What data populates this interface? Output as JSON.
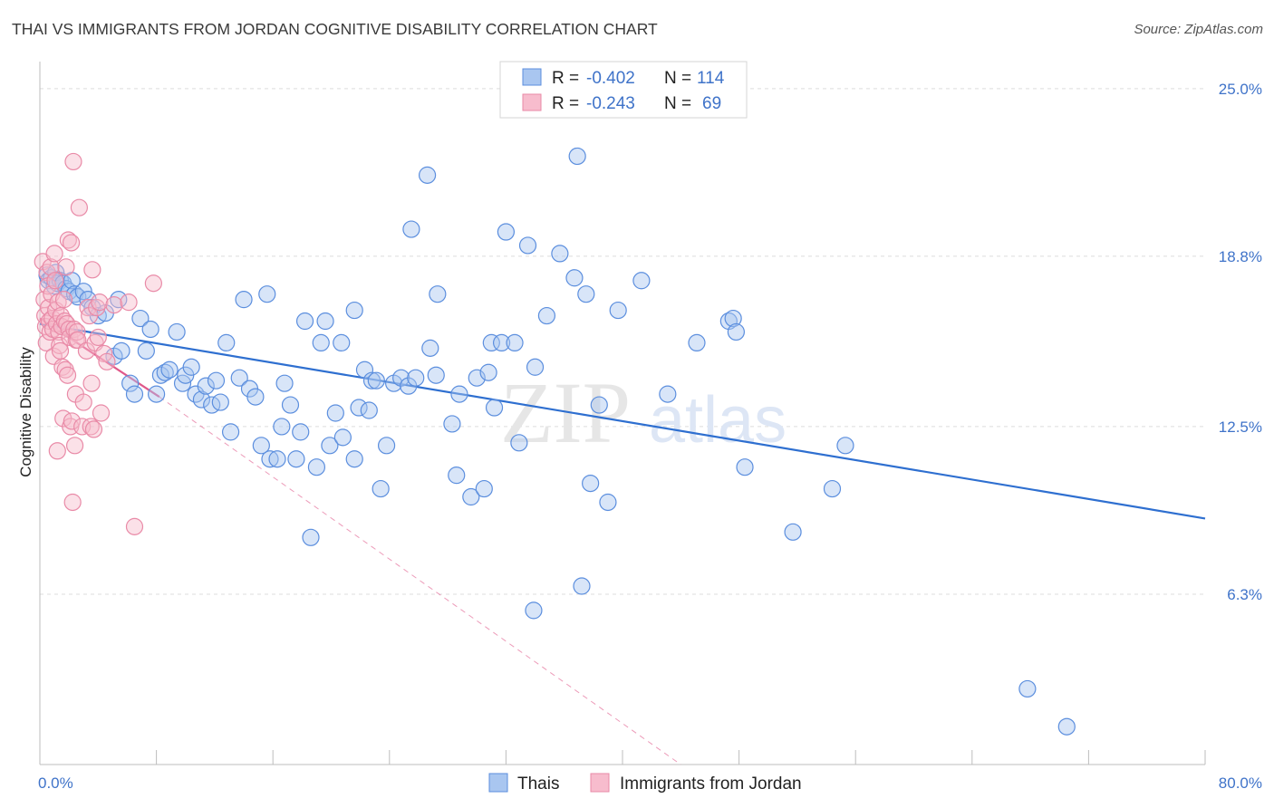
{
  "title": "THAI VS IMMIGRANTS FROM JORDAN COGNITIVE DISABILITY CORRELATION CHART",
  "source": "Source: ZipAtlas.com",
  "watermark": {
    "zip": "ZIP",
    "atlas": "atlas"
  },
  "chart_data": {
    "type": "scatter",
    "ylabel": "Cognitive Disability",
    "xlim": [
      0,
      80
    ],
    "ylim": [
      0,
      26
    ],
    "y_ticks": [
      {
        "value": 25.0,
        "label": "25.0%"
      },
      {
        "value": 18.8,
        "label": "18.8%"
      },
      {
        "value": 12.5,
        "label": "12.5%"
      },
      {
        "value": 6.3,
        "label": "6.3%"
      }
    ],
    "x_tick_labels": [
      {
        "value": 0,
        "label": "0.0%"
      },
      {
        "value": 80,
        "label": "80.0%"
      }
    ],
    "x_minor_ticks": [
      0,
      8,
      16,
      24,
      32,
      40,
      48,
      56,
      64,
      72,
      80
    ],
    "legend": {
      "rows": [
        {
          "r_label": "R =",
          "r_value": "-0.402",
          "n_label": "N =",
          "n_value": "114"
        },
        {
          "r_label": "R =",
          "r_value": "-0.243",
          "n_label": "N =",
          "n_value": "69"
        }
      ]
    },
    "series": [
      {
        "name": "Thais",
        "color": "#5b8ede",
        "fill": "#a9c6f0",
        "line_color": "#2e6fd0",
        "trend": {
          "x": [
            0,
            80
          ],
          "y": [
            16.3,
            9.1
          ]
        },
        "points": [
          [
            0.5,
            18.1
          ],
          [
            0.6,
            17.9
          ],
          [
            0.8,
            18.0
          ],
          [
            1.0,
            17.7
          ],
          [
            1.1,
            18.2
          ],
          [
            1.2,
            17.8
          ],
          [
            1.4,
            17.9
          ],
          [
            1.6,
            17.8
          ],
          [
            1.8,
            17.6
          ],
          [
            2.0,
            17.5
          ],
          [
            2.2,
            17.9
          ],
          [
            2.4,
            17.4
          ],
          [
            2.6,
            17.3
          ],
          [
            3.0,
            17.5
          ],
          [
            3.3,
            17.2
          ],
          [
            3.6,
            16.9
          ],
          [
            4.0,
            16.6
          ],
          [
            4.5,
            16.7
          ],
          [
            5.4,
            17.2
          ],
          [
            5.1,
            15.1
          ],
          [
            5.6,
            15.3
          ],
          [
            6.2,
            14.1
          ],
          [
            6.5,
            13.7
          ],
          [
            6.9,
            16.5
          ],
          [
            7.3,
            15.3
          ],
          [
            7.6,
            16.1
          ],
          [
            8.0,
            13.7
          ],
          [
            8.3,
            14.4
          ],
          [
            8.6,
            14.5
          ],
          [
            8.9,
            14.6
          ],
          [
            9.4,
            16.0
          ],
          [
            9.8,
            14.1
          ],
          [
            10.0,
            14.4
          ],
          [
            10.4,
            14.7
          ],
          [
            10.7,
            13.7
          ],
          [
            11.1,
            13.5
          ],
          [
            11.4,
            14.0
          ],
          [
            11.8,
            13.3
          ],
          [
            12.1,
            14.2
          ],
          [
            12.4,
            13.4
          ],
          [
            12.8,
            15.6
          ],
          [
            13.1,
            12.3
          ],
          [
            13.7,
            14.3
          ],
          [
            14.0,
            17.2
          ],
          [
            14.4,
            13.9
          ],
          [
            14.8,
            13.6
          ],
          [
            15.2,
            11.8
          ],
          [
            15.6,
            17.4
          ],
          [
            15.8,
            11.3
          ],
          [
            16.3,
            11.3
          ],
          [
            16.6,
            12.5
          ],
          [
            16.8,
            14.1
          ],
          [
            17.2,
            13.3
          ],
          [
            17.6,
            11.3
          ],
          [
            17.9,
            12.3
          ],
          [
            18.2,
            16.4
          ],
          [
            18.6,
            8.4
          ],
          [
            19.0,
            11.0
          ],
          [
            19.3,
            15.6
          ],
          [
            19.6,
            16.4
          ],
          [
            19.9,
            11.8
          ],
          [
            20.3,
            13.0
          ],
          [
            20.8,
            12.1
          ],
          [
            20.7,
            15.6
          ],
          [
            21.6,
            11.3
          ],
          [
            21.6,
            16.8
          ],
          [
            21.9,
            13.2
          ],
          [
            22.3,
            14.6
          ],
          [
            22.6,
            13.1
          ],
          [
            22.8,
            14.2
          ],
          [
            23.1,
            14.2
          ],
          [
            23.4,
            10.2
          ],
          [
            23.8,
            11.8
          ],
          [
            24.3,
            14.1
          ],
          [
            24.8,
            14.3
          ],
          [
            25.3,
            14.0
          ],
          [
            25.5,
            19.8
          ],
          [
            25.8,
            14.3
          ],
          [
            26.6,
            21.8
          ],
          [
            26.8,
            15.4
          ],
          [
            27.2,
            14.4
          ],
          [
            27.3,
            17.4
          ],
          [
            28.3,
            12.6
          ],
          [
            28.6,
            10.7
          ],
          [
            28.8,
            13.7
          ],
          [
            29.6,
            9.9
          ],
          [
            30.0,
            14.3
          ],
          [
            30.5,
            10.2
          ],
          [
            30.8,
            14.5
          ],
          [
            31.2,
            13.2
          ],
          [
            31.0,
            15.6
          ],
          [
            31.7,
            15.6
          ],
          [
            32.0,
            19.7
          ],
          [
            32.6,
            15.6
          ],
          [
            32.9,
            11.9
          ],
          [
            33.5,
            19.2
          ],
          [
            33.9,
            5.7
          ],
          [
            34.0,
            14.7
          ],
          [
            34.8,
            16.6
          ],
          [
            35.7,
            18.9
          ],
          [
            36.7,
            18.0
          ],
          [
            36.9,
            22.5
          ],
          [
            37.2,
            6.6
          ],
          [
            37.5,
            17.4
          ],
          [
            37.8,
            10.4
          ],
          [
            38.4,
            13.3
          ],
          [
            39.0,
            9.7
          ],
          [
            39.7,
            16.8
          ],
          [
            41.3,
            17.9
          ],
          [
            43.1,
            13.7
          ],
          [
            45.1,
            15.6
          ],
          [
            47.3,
            16.4
          ],
          [
            47.6,
            16.5
          ],
          [
            47.8,
            16.0
          ],
          [
            48.4,
            11.0
          ],
          [
            51.7,
            8.6
          ],
          [
            54.4,
            10.2
          ],
          [
            55.3,
            11.8
          ],
          [
            67.8,
            2.8
          ],
          [
            70.5,
            1.4
          ]
        ]
      },
      {
        "name": "Immigrants from Jordan",
        "color": "#e98aa7",
        "fill": "#f7bccd",
        "line_color": "#e0588a",
        "trend": {
          "x": [
            0,
            8.2
          ],
          "y": [
            16.5,
            13.6
          ]
        },
        "trend_ext": {
          "x": [
            8.2,
            44.0
          ],
          "y": [
            13.6,
            0
          ]
        },
        "points": [
          [
            0.2,
            18.6
          ],
          [
            0.3,
            17.2
          ],
          [
            0.35,
            16.6
          ],
          [
            0.4,
            16.2
          ],
          [
            0.45,
            15.6
          ],
          [
            0.5,
            18.2
          ],
          [
            0.55,
            17.7
          ],
          [
            0.6,
            16.9
          ],
          [
            0.65,
            16.4
          ],
          [
            0.7,
            16.0
          ],
          [
            0.75,
            18.4
          ],
          [
            0.8,
            17.4
          ],
          [
            0.85,
            16.5
          ],
          [
            0.9,
            16.1
          ],
          [
            0.95,
            15.1
          ],
          [
            1.0,
            18.9
          ],
          [
            1.05,
            17.9
          ],
          [
            1.1,
            16.8
          ],
          [
            1.15,
            16.3
          ],
          [
            1.2,
            11.6
          ],
          [
            1.25,
            17.1
          ],
          [
            1.3,
            16.0
          ],
          [
            1.35,
            15.5
          ],
          [
            1.4,
            15.3
          ],
          [
            1.45,
            16.6
          ],
          [
            1.5,
            16.2
          ],
          [
            1.55,
            14.7
          ],
          [
            1.6,
            12.8
          ],
          [
            1.65,
            17.2
          ],
          [
            1.7,
            16.4
          ],
          [
            1.75,
            14.6
          ],
          [
            1.8,
            18.4
          ],
          [
            1.85,
            16.3
          ],
          [
            1.9,
            14.4
          ],
          [
            1.95,
            19.4
          ],
          [
            2.0,
            16.1
          ],
          [
            2.05,
            15.8
          ],
          [
            2.1,
            12.5
          ],
          [
            2.15,
            19.3
          ],
          [
            2.2,
            12.7
          ],
          [
            2.25,
            9.7
          ],
          [
            2.3,
            22.3
          ],
          [
            2.35,
            16.1
          ],
          [
            2.4,
            11.8
          ],
          [
            2.45,
            13.7
          ],
          [
            2.5,
            15.7
          ],
          [
            2.55,
            16.0
          ],
          [
            2.6,
            15.7
          ],
          [
            2.7,
            20.6
          ],
          [
            2.9,
            12.5
          ],
          [
            3.0,
            13.4
          ],
          [
            3.2,
            15.3
          ],
          [
            3.3,
            16.9
          ],
          [
            3.4,
            16.6
          ],
          [
            3.5,
            12.5
          ],
          [
            3.55,
            14.1
          ],
          [
            3.6,
            18.3
          ],
          [
            3.7,
            12.4
          ],
          [
            3.8,
            15.6
          ],
          [
            3.9,
            16.9
          ],
          [
            4.0,
            15.8
          ],
          [
            4.1,
            17.1
          ],
          [
            4.2,
            13.0
          ],
          [
            4.4,
            15.2
          ],
          [
            4.6,
            14.9
          ],
          [
            5.1,
            17.0
          ],
          [
            6.1,
            17.1
          ],
          [
            6.5,
            8.8
          ],
          [
            7.8,
            17.8
          ]
        ]
      }
    ]
  }
}
